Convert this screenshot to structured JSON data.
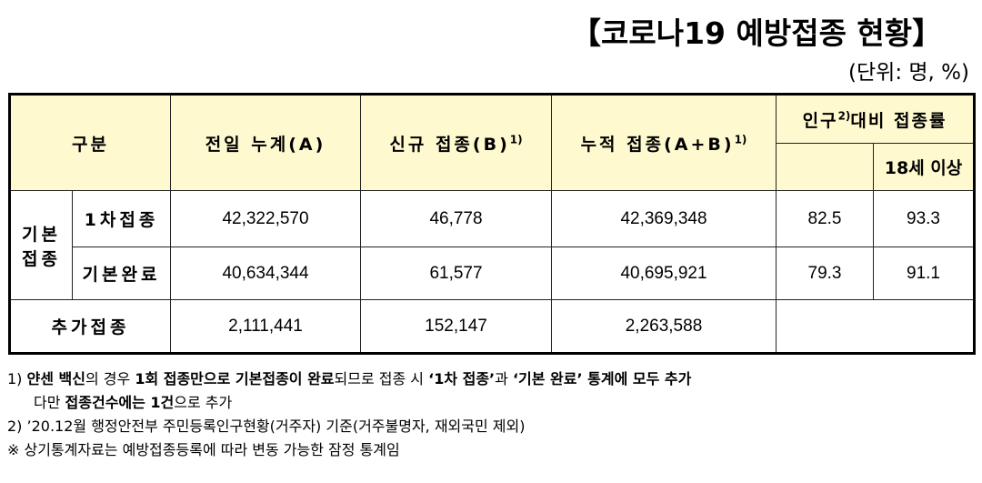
{
  "title": "【코로나19 예방접종 현황】",
  "unit": "(단위: 명, %)",
  "table": {
    "header": {
      "category": "구분",
      "prev_total": "전일 누계(A)",
      "new": "신규 접종(B)",
      "new_sup": "1)",
      "cumulative": "누적 접종(A+B)",
      "cumulative_sup": "1)",
      "rate_pre": "인구",
      "rate_sup": "2)",
      "rate_post": "대비 접종률",
      "age18": "18세 이상"
    },
    "group_label_1": "기본",
    "group_label_2": "접종",
    "rows": [
      {
        "label": "1차접종",
        "prev": "42,322,570",
        "new": "46,778",
        "cum": "42,369,348",
        "rate": "82.5",
        "rate18": "93.3"
      },
      {
        "label": "기본완료",
        "prev": "40,634,344",
        "new": "61,577",
        "cum": "40,695,921",
        "rate": "79.3",
        "rate18": "91.1"
      },
      {
        "label": "추가접종",
        "prev": "2,111,441",
        "new": "152,147",
        "cum": "2,263,588"
      }
    ]
  },
  "notes": {
    "n1_a": "1) ",
    "n1_b": "얀센 백신",
    "n1_c": "의 경우 ",
    "n1_d": "1회 접종만으로 기본접종이 완료",
    "n1_e": "되므로 접종 시 ",
    "n1_f": "‘1차 접종’",
    "n1_g": "과 ",
    "n1_h": "‘기본 완료’ 통계에 모두 추가",
    "n1b_a": "다만 ",
    "n1b_b": "접종건수에는 1건",
    "n1b_c": "으로 추가",
    "n2": "2) ’20.12월 행정안전부 주민등록인구현황(거주자) 기준(거주불명자, 재외국민 제외)",
    "n3": "※ 상기통계자료는 예방접종등록에 따라 변동 가능한 잠정 통계임"
  }
}
